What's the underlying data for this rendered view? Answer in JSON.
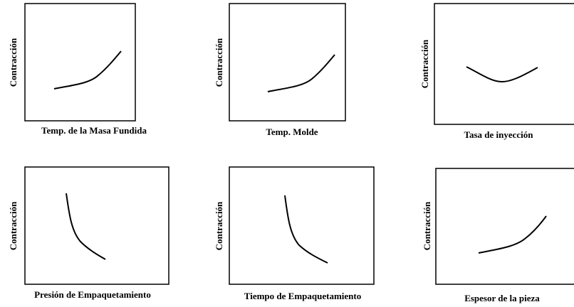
{
  "panels": [
    {
      "y_label": "Contracción",
      "x_label": "Temp. de la Masa Fundida"
    },
    {
      "y_label": "Contracción",
      "x_label": "Temp. Molde"
    },
    {
      "y_label": "Contracción",
      "x_label": "Tasa de inyección"
    },
    {
      "y_label": "Contracción",
      "x_label": "Presión de Empaquetamiento"
    },
    {
      "y_label": "Contracción",
      "x_label": "Tiempo de Empaquetamiento"
    },
    {
      "y_label": "Contracción",
      "x_label": "Espesor de la pieza"
    }
  ]
}
